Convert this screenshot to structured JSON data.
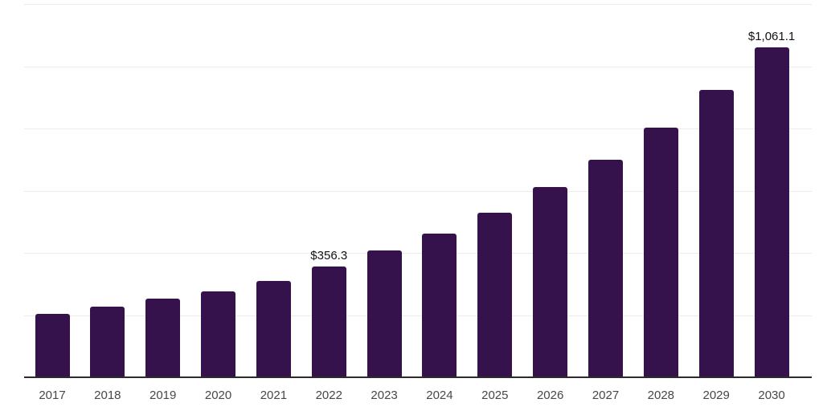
{
  "chart_data": {
    "type": "bar",
    "title": "",
    "xlabel": "",
    "ylabel": "",
    "categories": [
      "2017",
      "2018",
      "2019",
      "2020",
      "2021",
      "2022",
      "2023",
      "2024",
      "2025",
      "2026",
      "2027",
      "2028",
      "2029",
      "2030"
    ],
    "values": [
      204.3,
      226.7,
      252.2,
      276.0,
      310.5,
      356.3,
      407.4,
      460.8,
      529.7,
      610.5,
      700.2,
      802.5,
      923.4,
      1061.1
    ],
    "data_labels": [
      {
        "category": "2022",
        "text": "$356.3"
      },
      {
        "category": "2030",
        "text": "$1,061.1"
      }
    ],
    "ylim": [
      0,
      1200
    ],
    "gridline_interval": 200,
    "grid": "horizontal-only",
    "y_axis_tick_labels": "none",
    "legend": "none",
    "bar_color": "#36124d",
    "gridline_color": "#ececec",
    "axis_line_color": "#2b2b2b",
    "tick_label_color": "#474747",
    "data_label_color": "#121212",
    "background_color": "#ffffff"
  }
}
